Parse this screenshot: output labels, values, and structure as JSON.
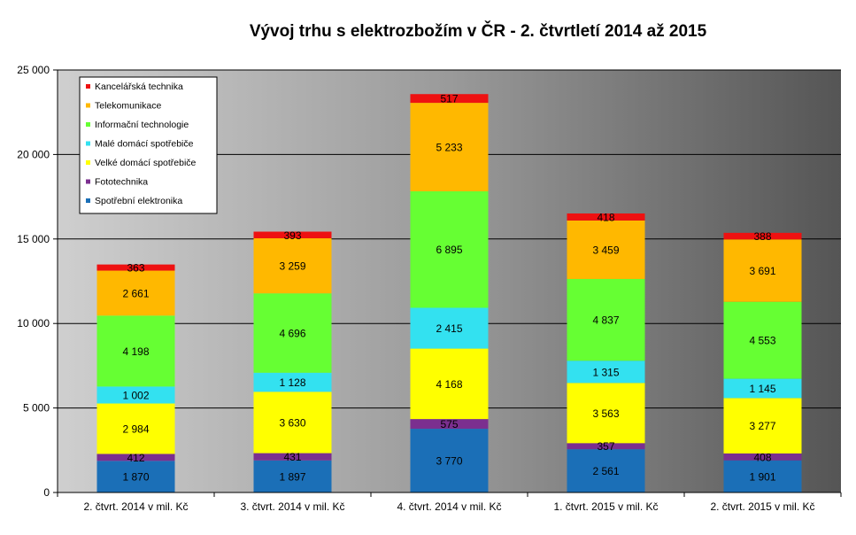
{
  "chart_data": {
    "type": "bar",
    "stacked": true,
    "title": "Vývoj trhu s elektrozbožím v ČR - 2. čtvrtletí 2014 až 2015",
    "xlabel": "",
    "ylabel": "",
    "ylim": [
      0,
      25000
    ],
    "yticks": [
      0,
      5000,
      10000,
      15000,
      20000,
      25000
    ],
    "ytick_labels": [
      "0",
      "5 000",
      "10 000",
      "15 000",
      "20 000",
      "25 000"
    ],
    "grid": true,
    "legend_position": "top-left",
    "categories": [
      "2. čtvrt. 2014 v mil. Kč",
      "3. čtvrt. 2014 v mil. Kč",
      "4. čtvrt. 2014 v mil. Kč",
      "1. čtvrt. 2015 v mil. Kč",
      "2. čtvrt. 2015 v mil. Kč"
    ],
    "series": [
      {
        "name": "Spotřební elektronika",
        "color": "#1b6fb7",
        "values": [
          1870,
          1897,
          3770,
          2561,
          1901
        ],
        "labels": [
          "1 870",
          "1 897",
          "3 770",
          "2 561",
          "1 901"
        ]
      },
      {
        "name": "Fototechnika",
        "color": "#7b2f8f",
        "values": [
          412,
          431,
          575,
          357,
          408
        ],
        "labels": [
          "412",
          "431",
          "575",
          "357",
          "408"
        ]
      },
      {
        "name": "Velké domácí spotřebiče",
        "color": "#ffff00",
        "values": [
          2984,
          3630,
          4168,
          3563,
          3277
        ],
        "labels": [
          "2 984",
          "3 630",
          "4 168",
          "3 563",
          "3 277"
        ]
      },
      {
        "name": "Malé domácí spotřebiče",
        "color": "#33e1f0",
        "values": [
          1002,
          1128,
          2415,
          1315,
          1145
        ],
        "labels": [
          "1 002",
          "1 128",
          "2 415",
          "1 315",
          "1 145"
        ]
      },
      {
        "name": "Informační technologie",
        "color": "#66ff33",
        "values": [
          4198,
          4696,
          6895,
          4837,
          4553
        ],
        "labels": [
          "4 198",
          "4 696",
          "6 895",
          "4 837",
          "4 553"
        ]
      },
      {
        "name": "Telekomunikace",
        "color": "#ffb800",
        "values": [
          2661,
          3259,
          5233,
          3459,
          3691
        ],
        "labels": [
          "2 661",
          "3 259",
          "5 233",
          "3 459",
          "3 691"
        ]
      },
      {
        "name": "Kancelářská technika",
        "color": "#ee1111",
        "values": [
          363,
          393,
          517,
          418,
          388
        ],
        "labels": [
          "363",
          "393",
          "517",
          "418",
          "388"
        ]
      }
    ],
    "legend_order": [
      6,
      5,
      4,
      3,
      2,
      1,
      0
    ]
  }
}
